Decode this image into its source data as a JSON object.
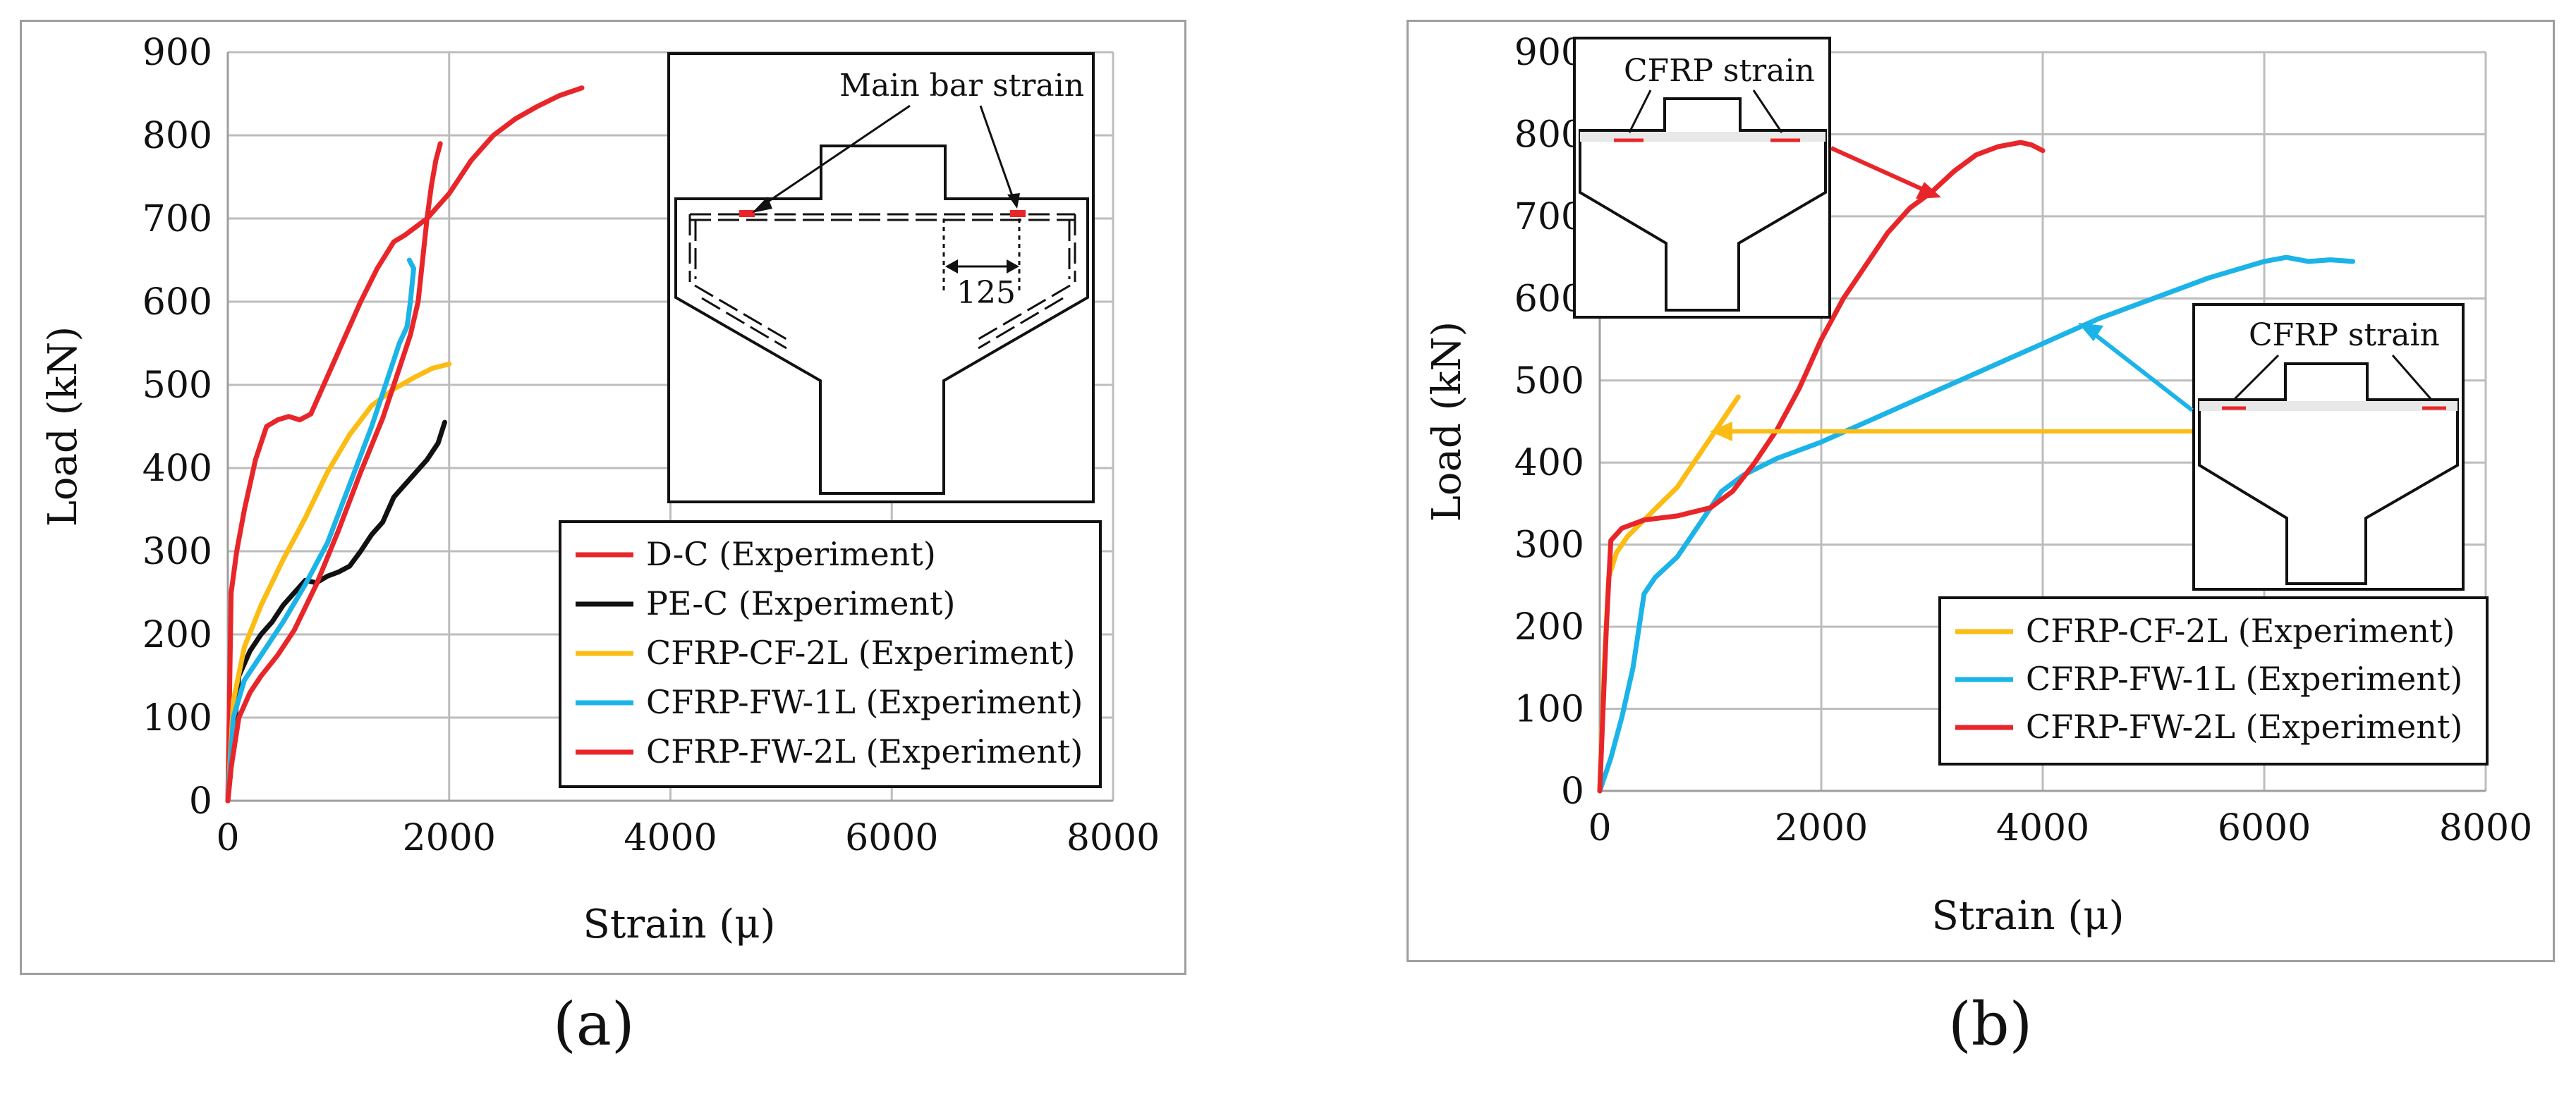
{
  "panel_labels": [
    "(a)",
    "(b)"
  ],
  "chart_data": [
    {
      "type": "line",
      "panel": "(a)",
      "xlabel": "Strain (μ)",
      "ylabel": "Load (kN)",
      "xlim": [
        0,
        8000
      ],
      "ylim": [
        0,
        900
      ],
      "xticks": [
        0,
        2000,
        4000,
        6000,
        8000
      ],
      "yticks": [
        0,
        100,
        200,
        300,
        400,
        500,
        600,
        700,
        800,
        900
      ],
      "grid": true,
      "legend_position": "bottom-right",
      "inset_annotations": [
        "Main bar strain",
        "125"
      ],
      "series": [
        {
          "name": "D-C (Experiment)",
          "color": "#e8262a",
          "x": [
            0,
            30,
            80,
            150,
            250,
            350,
            450,
            550,
            650,
            750,
            900,
            1050,
            1200,
            1350,
            1500,
            1600,
            1700,
            1800,
            2000,
            2200,
            2400,
            2600,
            2800,
            3000,
            3200
          ],
          "y": [
            0,
            250,
            300,
            350,
            410,
            450,
            458,
            462,
            458,
            465,
            510,
            555,
            600,
            640,
            672,
            680,
            690,
            700,
            730,
            770,
            800,
            820,
            835,
            848,
            857
          ]
        },
        {
          "name": "PE-C (Experiment)",
          "color": "#111111",
          "x": [
            0,
            30,
            100,
            200,
            300,
            400,
            500,
            600,
            700,
            800,
            900,
            1000,
            1100,
            1200,
            1300,
            1400,
            1500,
            1600,
            1700,
            1800,
            1900,
            1960
          ],
          "y": [
            0,
            40,
            150,
            180,
            200,
            215,
            235,
            250,
            265,
            262,
            270,
            275,
            282,
            300,
            320,
            335,
            365,
            380,
            395,
            410,
            430,
            455
          ]
        },
        {
          "name": "CFRP-CF-2L (Experiment)",
          "color": "#fbbc14",
          "x": [
            0,
            50,
            150,
            300,
            500,
            700,
            900,
            1100,
            1300,
            1500,
            1700,
            1850,
            2000
          ],
          "y": [
            0,
            120,
            185,
            235,
            290,
            340,
            395,
            440,
            475,
            495,
            510,
            520,
            525
          ]
        },
        {
          "name": "CFRP-FW-1L (Experiment)",
          "color": "#1cb4e8",
          "x": [
            0,
            50,
            150,
            300,
            500,
            700,
            900,
            1100,
            1300,
            1450,
            1550,
            1620,
            1650,
            1680,
            1640
          ],
          "y": [
            0,
            100,
            145,
            175,
            215,
            260,
            310,
            380,
            450,
            510,
            550,
            570,
            600,
            640,
            650
          ]
        },
        {
          "name": "CFRP-FW-2L (Experiment)",
          "color": "#e8262a",
          "x": [
            0,
            30,
            100,
            200,
            300,
            450,
            600,
            800,
            1000,
            1200,
            1400,
            1550,
            1650,
            1720,
            1760,
            1800,
            1840,
            1880,
            1920
          ],
          "y": [
            0,
            40,
            100,
            130,
            150,
            175,
            205,
            260,
            325,
            395,
            460,
            520,
            560,
            600,
            650,
            700,
            740,
            770,
            790
          ]
        }
      ]
    },
    {
      "type": "line",
      "panel": "(b)",
      "xlabel": "Strain (μ)",
      "ylabel": "Load (kN)",
      "xlim": [
        0,
        8000
      ],
      "ylim": [
        0,
        900
      ],
      "xticks": [
        0,
        2000,
        4000,
        6000,
        8000
      ],
      "yticks": [
        0,
        100,
        200,
        300,
        400,
        500,
        600,
        700,
        800,
        900
      ],
      "grid": true,
      "legend_position": "bottom-right",
      "inset_annotations": [
        "CFRP strain",
        "CFRP strain"
      ],
      "series": [
        {
          "name": "CFRP-CF-2L (Experiment)",
          "color": "#fbbc14",
          "x": [
            0,
            40,
            80,
            150,
            250,
            400,
            550,
            700,
            850,
            1000,
            1100,
            1250
          ],
          "y": [
            0,
            150,
            260,
            290,
            310,
            330,
            350,
            370,
            400,
            430,
            450,
            480
          ]
        },
        {
          "name": "CFRP-FW-1L (Experiment)",
          "color": "#1cb4e8",
          "x": [
            0,
            100,
            200,
            300,
            400,
            500,
            700,
            900,
            1100,
            1300,
            1600,
            2000,
            2500,
            3000,
            3500,
            4000,
            4500,
            5000,
            5500,
            6000,
            6200,
            6400,
            6600,
            6800
          ],
          "y": [
            0,
            40,
            90,
            150,
            240,
            260,
            285,
            325,
            365,
            385,
            405,
            425,
            455,
            485,
            515,
            545,
            575,
            600,
            625,
            645,
            650,
            645,
            647,
            645
          ]
        },
        {
          "name": "CFRP-FW-2L (Experiment)",
          "color": "#e8262a",
          "x": [
            0,
            30,
            60,
            100,
            200,
            400,
            700,
            1000,
            1200,
            1400,
            1600,
            1800,
            2000,
            2200,
            2400,
            2600,
            2800,
            3000,
            3200,
            3400,
            3600,
            3800,
            3900,
            4000
          ],
          "y": [
            0,
            100,
            200,
            305,
            320,
            330,
            335,
            345,
            365,
            400,
            440,
            490,
            550,
            600,
            640,
            680,
            710,
            730,
            755,
            775,
            785,
            790,
            787,
            780
          ]
        }
      ]
    }
  ]
}
